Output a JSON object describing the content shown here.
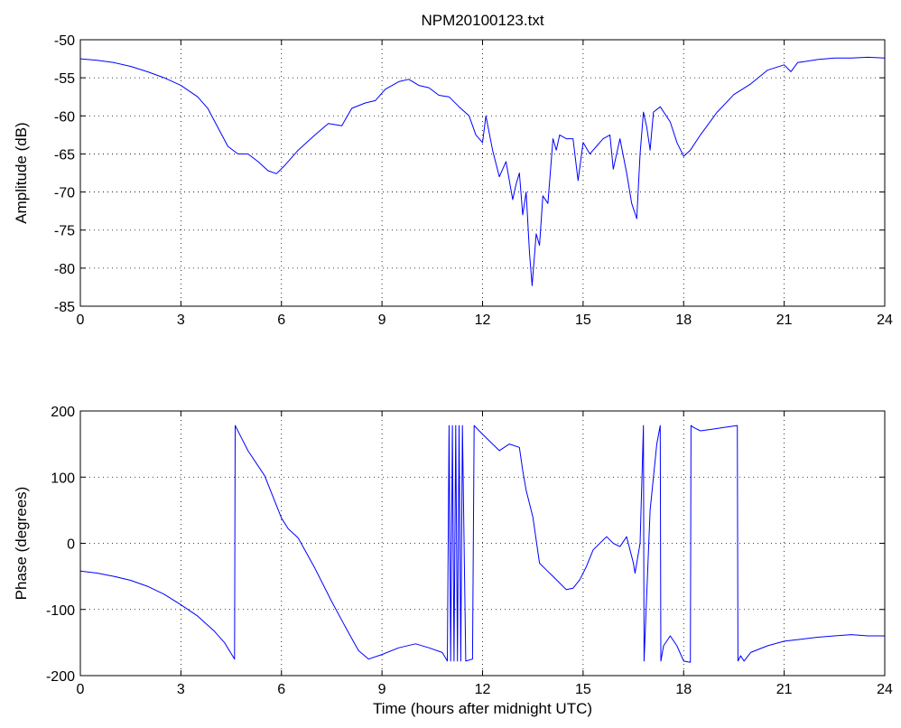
{
  "chart_data": [
    {
      "type": "line",
      "title": "NPM20100123.txt",
      "xlabel": "",
      "ylabel": "Amplitude (dB)",
      "xlim": [
        0,
        24
      ],
      "ylim": [
        -85,
        -50
      ],
      "xticks": [
        0,
        3,
        6,
        9,
        12,
        15,
        18,
        21,
        24
      ],
      "yticks": [
        -50,
        -55,
        -60,
        -65,
        -70,
        -75,
        -80,
        -85
      ],
      "grid": true,
      "line_color": "#0000ff",
      "series": [
        {
          "x": [
            0,
            0.5,
            1,
            1.5,
            2,
            2.5,
            3,
            3.5,
            3.8,
            4.1,
            4.4,
            4.7,
            5.0,
            5.3,
            5.6,
            5.85,
            6.1,
            6.5,
            7.0,
            7.4,
            7.8,
            8.1,
            8.5,
            8.8,
            9.1,
            9.5,
            9.8,
            10.1,
            10.4,
            10.7,
            11.0,
            11.3,
            11.6,
            11.8,
            12.0,
            12.1,
            12.3,
            12.5,
            12.7,
            12.9,
            13.0,
            13.1,
            13.2,
            13.3,
            13.4,
            13.48,
            13.6,
            13.7,
            13.8,
            13.95,
            14.1,
            14.2,
            14.3,
            14.5,
            14.7,
            14.85,
            15.0,
            15.2,
            15.4,
            15.6,
            15.8,
            15.9,
            16.1,
            16.3,
            16.45,
            16.6,
            16.7,
            16.8,
            16.9,
            17.0,
            17.1,
            17.3,
            17.6,
            17.8,
            18.0,
            18.2,
            18.5,
            19.0,
            19.5,
            20.0,
            20.5,
            21.0,
            21.2,
            21.4,
            22.0,
            22.5,
            23.0,
            23.5,
            24.0
          ],
          "y": [
            -52.5,
            -52.7,
            -53.0,
            -53.5,
            -54.2,
            -55.0,
            -56.0,
            -57.5,
            -59.0,
            -61.5,
            -64.0,
            -65.0,
            -65.0,
            -66.0,
            -67.2,
            -67.6,
            -66.5,
            -64.5,
            -62.5,
            -61.0,
            -61.3,
            -59.0,
            -58.3,
            -58.0,
            -56.5,
            -55.5,
            -55.2,
            -56.0,
            -56.3,
            -57.3,
            -57.5,
            -58.8,
            -60.0,
            -62.5,
            -63.5,
            -60.0,
            -64.5,
            -68.0,
            -66.0,
            -71.0,
            -69.0,
            -67.5,
            -73.0,
            -70.0,
            -78.0,
            -82.3,
            -75.5,
            -77.0,
            -70.5,
            -71.5,
            -63.0,
            -64.5,
            -62.5,
            -63.0,
            -63.0,
            -68.5,
            -63.5,
            -65.0,
            -64.0,
            -63.0,
            -62.5,
            -67.0,
            -63.0,
            -67.5,
            -71.5,
            -73.5,
            -65.0,
            -59.5,
            -61.5,
            -64.5,
            -59.5,
            -58.8,
            -60.8,
            -63.5,
            -65.3,
            -64.5,
            -62.5,
            -59.5,
            -57.2,
            -55.8,
            -54.0,
            -53.3,
            -54.2,
            -53.0,
            -52.6,
            -52.4,
            -52.4,
            -52.3,
            -52.4
          ]
        }
      ]
    },
    {
      "type": "line",
      "title": "",
      "xlabel": "Time (hours after midnight UTC)",
      "ylabel": "Phase (degrees)",
      "xlim": [
        0,
        24
      ],
      "ylim": [
        -200,
        200
      ],
      "xticks": [
        0,
        3,
        6,
        9,
        12,
        15,
        18,
        21,
        24
      ],
      "yticks": [
        200,
        100,
        0,
        -100,
        -200
      ],
      "grid": true,
      "line_color": "#0000ff",
      "series": [
        {
          "x": [
            0,
            0.5,
            1,
            1.5,
            2,
            2.5,
            3,
            3.5,
            4.0,
            4.3,
            4.6,
            4.62,
            4.8,
            5.0,
            5.5,
            6.0,
            6.2,
            6.5,
            7.0,
            7.5,
            8.0,
            8.3,
            8.6,
            9.0,
            9.5,
            10.0,
            10.4,
            10.8,
            10.95,
            11.0,
            11.05,
            11.1,
            11.15,
            11.2,
            11.25,
            11.3,
            11.35,
            11.4,
            11.5,
            11.7,
            11.75,
            11.9,
            12.2,
            12.5,
            12.8,
            13.1,
            13.2,
            13.3,
            13.5,
            13.7,
            13.9,
            14.1,
            14.3,
            14.5,
            14.7,
            14.9,
            15.1,
            15.3,
            15.5,
            15.7,
            15.9,
            16.1,
            16.3,
            16.5,
            16.55,
            16.7,
            16.8,
            16.82,
            17.0,
            17.2,
            17.3,
            17.32,
            17.4,
            17.6,
            17.8,
            18.0,
            18.2,
            18.22,
            18.3,
            18.5,
            18.8,
            19.2,
            19.6,
            19.62,
            19.7,
            19.8,
            20.0,
            20.5,
            21.0,
            21.5,
            22.0,
            22.5,
            23.0,
            23.5,
            24.0
          ],
          "y": [
            -42,
            -45,
            -50,
            -56,
            -65,
            -77,
            -93,
            -110,
            -133,
            -150,
            -175,
            178,
            160,
            140,
            102,
            38,
            22,
            8,
            -38,
            -88,
            -135,
            -162,
            -175,
            -168,
            -158,
            -152,
            -158,
            -165,
            -178,
            178,
            -178,
            178,
            -178,
            178,
            -178,
            178,
            -178,
            178,
            -178,
            -175,
            178,
            170,
            155,
            140,
            150,
            145,
            110,
            80,
            40,
            -30,
            -40,
            -50,
            -60,
            -70,
            -68,
            -55,
            -35,
            -10,
            0,
            10,
            0,
            -5,
            10,
            -30,
            -45,
            0,
            178,
            -178,
            50,
            150,
            178,
            -178,
            -155,
            -140,
            -155,
            -178,
            -180,
            178,
            175,
            170,
            172,
            175,
            178,
            -178,
            -170,
            -178,
            -165,
            -155,
            -148,
            -145,
            -142,
            -140,
            -138,
            -140,
            -140
          ]
        }
      ]
    }
  ]
}
